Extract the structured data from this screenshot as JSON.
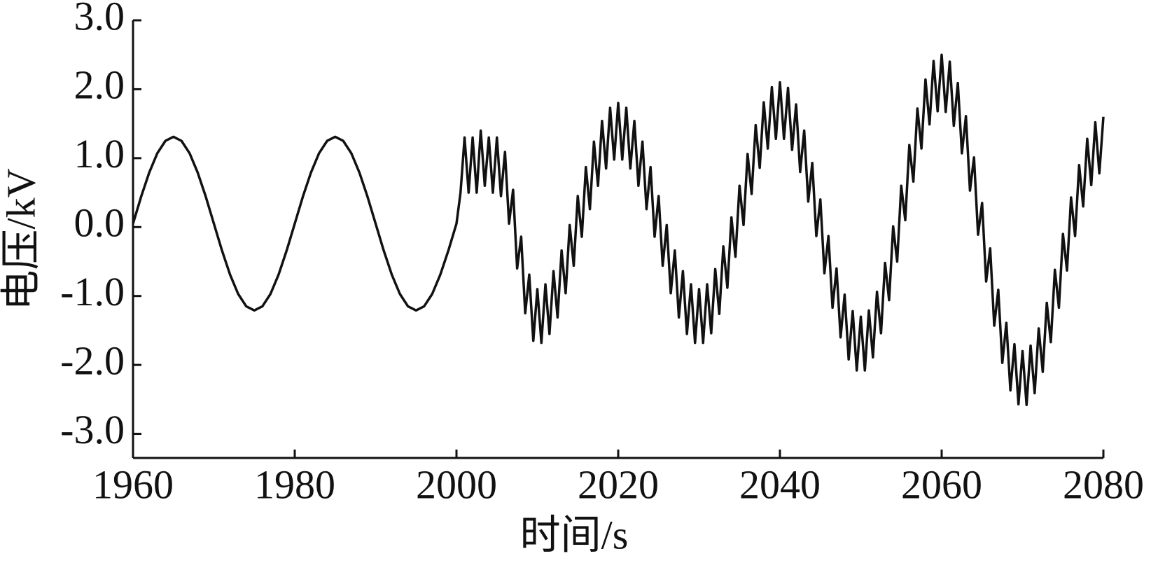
{
  "chart_data": {
    "type": "line",
    "xlabel": "时间/s",
    "ylabel": "电压/kV",
    "xlim": [
      1960,
      2080
    ],
    "ylim": [
      -3.35,
      3.0
    ],
    "xticks": [
      1960,
      1980,
      2000,
      2020,
      2040,
      2060,
      2080
    ],
    "yticks": [
      {
        "value": -3,
        "label": "-3.0"
      },
      {
        "value": -2,
        "label": "-2.0"
      },
      {
        "value": -1,
        "label": "-1.0"
      },
      {
        "value": 0,
        "label": "0.0"
      },
      {
        "value": 1,
        "label": "1.0"
      },
      {
        "value": 2,
        "label": "2.0"
      },
      {
        "value": 3,
        "label": "3.0"
      }
    ],
    "color": "#111111",
    "x": [
      1960,
      1961,
      1962,
      1963,
      1964,
      1965,
      1966,
      1967,
      1968,
      1969,
      1970,
      1971,
      1972,
      1973,
      1974,
      1975,
      1976,
      1977,
      1978,
      1979,
      1980,
      1981,
      1982,
      1983,
      1984,
      1985,
      1986,
      1987,
      1988,
      1989,
      1990,
      1991,
      1992,
      1993,
      1994,
      1995,
      1996,
      1997,
      1998,
      1999,
      2000,
      2000.5,
      2001,
      2001.5,
      2002,
      2002.5,
      2003,
      2003.5,
      2004,
      2004.5,
      2005,
      2005.5,
      2006,
      2006.5,
      2007,
      2007.5,
      2008,
      2008.5,
      2009,
      2009.5,
      2010,
      2010.5,
      2011,
      2011.5,
      2012,
      2012.5,
      2013,
      2013.5,
      2014,
      2014.5,
      2015,
      2015.5,
      2016,
      2016.5,
      2017,
      2017.5,
      2018,
      2018.5,
      2019,
      2019.5,
      2020,
      2020.5,
      2021,
      2021.5,
      2022,
      2022.5,
      2023,
      2023.5,
      2024,
      2024.5,
      2025,
      2025.5,
      2026,
      2026.5,
      2027,
      2027.5,
      2028,
      2028.5,
      2029,
      2029.5,
      2030,
      2030.5,
      2031,
      2031.5,
      2032,
      2032.5,
      2033,
      2033.5,
      2034,
      2034.5,
      2035,
      2035.5,
      2036,
      2036.5,
      2037,
      2037.5,
      2038,
      2038.5,
      2039,
      2039.5,
      2040,
      2040.5,
      2041,
      2041.5,
      2042,
      2042.5,
      2043,
      2043.5,
      2044,
      2044.5,
      2045,
      2045.5,
      2046,
      2046.5,
      2047,
      2047.5,
      2048,
      2048.5,
      2049,
      2049.5,
      2050,
      2050.5,
      2051,
      2051.5,
      2052,
      2052.5,
      2053,
      2053.5,
      2054,
      2054.5,
      2055,
      2055.5,
      2056,
      2056.5,
      2057,
      2057.5,
      2058,
      2058.5,
      2059,
      2059.5,
      2060,
      2060.5,
      2061,
      2061.5,
      2062,
      2062.5,
      2063,
      2063.5,
      2064,
      2064.5,
      2065,
      2065.5,
      2066,
      2066.5,
      2067,
      2067.5,
      2068,
      2068.5,
      2069,
      2069.5,
      2070,
      2070.5,
      2071,
      2071.5,
      2072,
      2072.5,
      2073,
      2073.5,
      2074,
      2074.5,
      2075,
      2075.5,
      2076,
      2076.5,
      2077,
      2077.5,
      2078,
      2078.5,
      2079,
      2079.5,
      2080
    ],
    "values": [
      0.05,
      0.44,
      0.79,
      1.07,
      1.25,
      1.31,
      1.25,
      1.07,
      0.79,
      0.44,
      0.05,
      -0.34,
      -0.69,
      -0.97,
      -1.15,
      -1.21,
      -1.15,
      -0.97,
      -0.69,
      -0.34,
      0.05,
      0.44,
      0.79,
      1.07,
      1.25,
      1.31,
      1.25,
      1.07,
      0.79,
      0.44,
      0.05,
      -0.34,
      -0.69,
      -0.97,
      -1.15,
      -1.21,
      -1.15,
      -0.97,
      -0.69,
      -0.34,
      0.05,
      0.5,
      1.3,
      0.5,
      1.3,
      0.5,
      1.4,
      0.6,
      1.3,
      0.5,
      1.3,
      0.45,
      1.09,
      0.05,
      0.54,
      -0.6,
      -0.14,
      -1.25,
      -0.69,
      -1.65,
      -0.9,
      -1.68,
      -0.83,
      -1.55,
      -0.64,
      -1.31,
      -0.34,
      -0.96,
      0.03,
      -0.56,
      0.45,
      -0.14,
      0.87,
      0.26,
      1.24,
      0.6,
      1.54,
      0.85,
      1.73,
      0.98,
      1.8,
      0.98,
      1.73,
      0.85,
      1.54,
      0.6,
      1.24,
      0.26,
      0.87,
      -0.14,
      0.45,
      -0.56,
      0.03,
      -0.96,
      -0.34,
      -1.31,
      -0.64,
      -1.55,
      -0.83,
      -1.68,
      -0.9,
      -1.68,
      -0.83,
      -1.54,
      -0.61,
      -1.26,
      -0.28,
      -0.88,
      0.14,
      -0.43,
      0.6,
      0.03,
      1.06,
      0.48,
      1.48,
      0.86,
      1.81,
      1.14,
      2.03,
      1.28,
      2.1,
      1.28,
      2.02,
      1.12,
      1.78,
      0.8,
      1.4,
      0.37,
      0.93,
      -0.13,
      0.4,
      -0.67,
      -0.13,
      -1.17,
      -0.6,
      -1.6,
      -0.98,
      -1.92,
      -1.22,
      -2.08,
      -1.3,
      -2.08,
      -1.21,
      -1.89,
      -0.94,
      -1.54,
      -0.52,
      -1.06,
      0.01,
      -0.5,
      0.6,
      0.1,
      1.19,
      0.66,
      1.72,
      1.14,
      2.14,
      1.49,
      2.41,
      1.68,
      2.5,
      1.67,
      2.4,
      1.47,
      2.09,
      1.07,
      1.61,
      0.53,
      1.01,
      -0.11,
      0.35,
      -0.79,
      -0.31,
      -1.43,
      -0.91,
      -1.97,
      -1.39,
      -2.37,
      -1.7,
      -2.57,
      -1.8,
      -2.58,
      -1.72,
      -2.41,
      -1.47,
      -2.1,
      -1.1,
      -1.67,
      -0.62,
      -1.17,
      -0.1,
      -0.63,
      0.43,
      -0.13,
      0.9,
      0.3,
      1.28,
      0.61,
      1.52,
      0.78,
      1.6
    ]
  }
}
